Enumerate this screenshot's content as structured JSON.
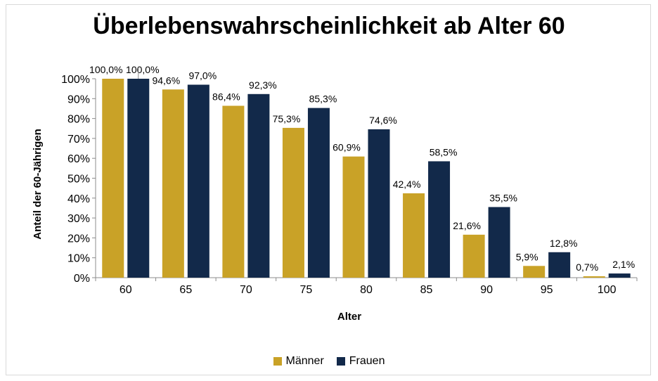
{
  "chart_data": {
    "type": "bar",
    "title": "Überlebenswahrscheinlichkeit ab Alter 60",
    "xlabel": "Alter",
    "ylabel": "Anteil der 60-Jährigen",
    "categories": [
      "60",
      "65",
      "70",
      "75",
      "80",
      "85",
      "90",
      "95",
      "100"
    ],
    "yticks": [
      "0%",
      "10%",
      "20%",
      "30%",
      "40%",
      "50%",
      "60%",
      "70%",
      "80%",
      "90%",
      "100%"
    ],
    "ylim": [
      0,
      100
    ],
    "grid": false,
    "legend_position": "bottom",
    "series": [
      {
        "name": "Männer",
        "color": "#C9A227",
        "values": [
          100.0,
          94.6,
          86.4,
          75.3,
          60.9,
          42.4,
          21.6,
          5.9,
          0.7
        ],
        "labels": [
          "100,0%",
          "94,6%",
          "86,4%",
          "75,3%",
          "60,9%",
          "42,4%",
          "21,6%",
          "5,9%",
          "0,7%"
        ]
      },
      {
        "name": "Frauen",
        "color": "#12294A",
        "values": [
          100.0,
          97.0,
          92.3,
          85.3,
          74.6,
          58.5,
          35.5,
          12.8,
          2.1
        ],
        "labels": [
          "100,0%",
          "97,0%",
          "92,3%",
          "85,3%",
          "74,6%",
          "58,5%",
          "35,5%",
          "12,8%",
          "2,1%"
        ]
      }
    ]
  }
}
